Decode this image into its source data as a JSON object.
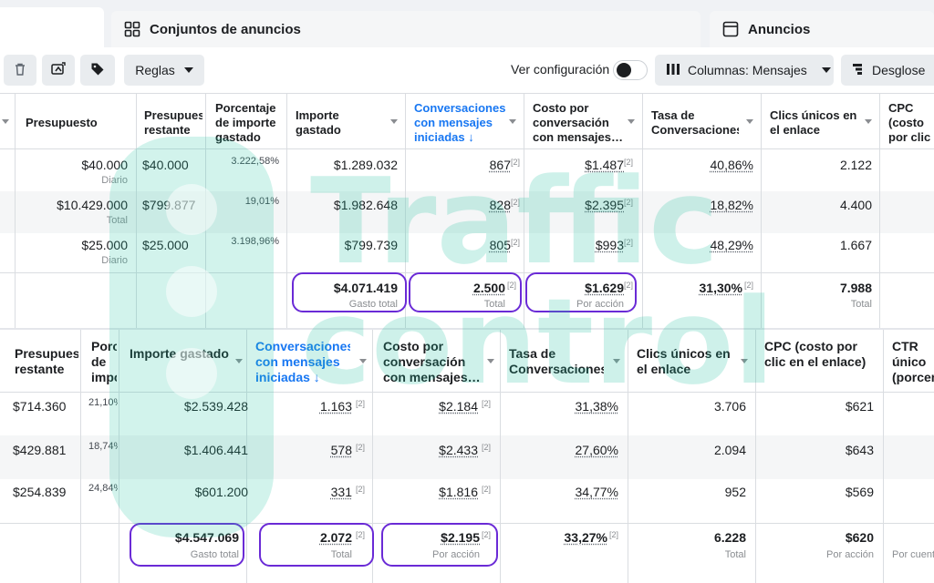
{
  "tabs": {
    "adsets": "Conjuntos de anuncios",
    "ads": "Anuncios"
  },
  "toolbar": {
    "rules": "Reglas",
    "view_config": "Ver configuración",
    "columns": "Columnas: Mensajes",
    "breakdown": "Desglose"
  },
  "table1": {
    "headers": {
      "budget": "Presupuesto",
      "remaining": "Presupuesto restante",
      "pct_spent": "Porcentaje de importe gastado",
      "amount_spent": "Importe gastado",
      "conversations": "Conversaciones con mensajes iniciadas ↓",
      "cost_per_conv": "Costo por conversación con mensajes…",
      "conv_rate": "Tasa de Conversaciones",
      "unique_clicks": "Clics únicos en el enlace",
      "cpc": "CPC (costo por clic en el enlace)"
    },
    "rows": [
      {
        "budget": "$40.000",
        "budget_sub": "Diario",
        "remaining": "$40.000",
        "pct": "3.222,58%",
        "spent": "$1.289.032",
        "conv": "867",
        "cost": "$1.487",
        "rate": "40,86%",
        "clicks": "2.122"
      },
      {
        "budget": "$10.429.000",
        "budget_sub": "Total",
        "remaining": "$799.877",
        "pct": "19,01%",
        "spent": "$1.982.648",
        "conv": "828",
        "cost": "$2.395",
        "rate": "18,82%",
        "clicks": "4.400"
      },
      {
        "budget": "$25.000",
        "budget_sub": "Diario",
        "remaining": "$25.000",
        "pct": "3.198,96%",
        "spent": "$799.739",
        "conv": "805",
        "cost": "$993",
        "rate": "48,29%",
        "clicks": "1.667"
      }
    ],
    "totals": {
      "spent": "$4.071.419",
      "spent_sub": "Gasto total",
      "conv": "2.500",
      "conv_sub": "Total",
      "cost": "$1.629",
      "cost_sub": "Por acción",
      "rate": "31,30%",
      "clicks": "7.988",
      "clicks_sub": "Total"
    },
    "footnote": "[2]"
  },
  "table2": {
    "headers": {
      "remaining": "Presupuesto restante",
      "pct_spent": "Porcentaje de importe gastado",
      "amount_spent": "Importe gastado",
      "conversations": "Conversaciones con mensajes iniciadas ↓",
      "cost_per_conv": "Costo por conversación con mensajes…",
      "conv_rate": "Tasa de Conversaciones",
      "unique_clicks": "Clics únicos en el enlace",
      "cpc": "CPC (costo por clic en el enlace)",
      "ctr": "CTR único (porcentaje de clics en el enlace)"
    },
    "rows": [
      {
        "remaining": "$714.360",
        "pct": "21,10%",
        "spent": "$2.539.428",
        "conv": "1.163",
        "cost": "$2.184",
        "rate": "31,38%",
        "clicks": "3.706",
        "cpc": "$621"
      },
      {
        "remaining": "$429.881",
        "pct": "18,74%",
        "spent": "$1.406.441",
        "conv": "578",
        "cost": "$2.433",
        "rate": "27,60%",
        "clicks": "2.094",
        "cpc": "$643"
      },
      {
        "remaining": "$254.839",
        "pct": "24,84%",
        "spent": "$601.200",
        "conv": "331",
        "cost": "$1.816",
        "rate": "34,77%",
        "clicks": "952",
        "cpc": "$569"
      }
    ],
    "totals": {
      "spent": "$4.547.069",
      "spent_sub": "Gasto total",
      "conv": "2.072",
      "conv_sub": "Total",
      "cost": "$2.195",
      "cost_sub": "Por acción",
      "rate": "33,27%",
      "clicks": "6.228",
      "clicks_sub": "Total",
      "cpc": "$620",
      "cpc_sub": "Por acción",
      "ctr_sub": "Por cuenta"
    },
    "footnote": "[2]"
  },
  "watermark": {
    "line1": "Traffic",
    "line2": "control"
  },
  "colors": {
    "accent_blue": "#1877f2",
    "highlight": "#6a2ad6",
    "watermark": "#1fc1a0"
  }
}
